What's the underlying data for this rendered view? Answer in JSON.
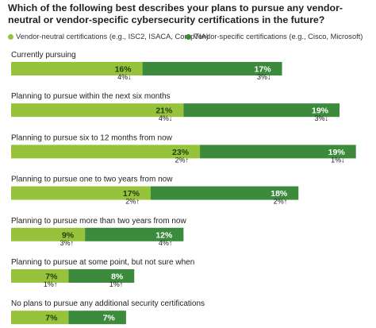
{
  "chart_data": {
    "type": "bar",
    "title": "Which of the following best describes your plans to pursue any vendor-neutral or vendor-specific cybersecurity certifications in the future?",
    "legend": [
      {
        "name": "Vendor-neutral certifications (e.g., ISC2, ISACA, CompTIA)",
        "color": "#97c33c"
      },
      {
        "name": "Vendor-specific certifications (e.g., Cisco, Microsoft)",
        "color": "#3c8a3b"
      }
    ],
    "stacked": true,
    "categories": [
      "Currently pursuing",
      "Planning to pursue within the next six months",
      "Planning to pursue six to 12 months from now",
      "Planning to pursue one to two years from now",
      "Planning to pursue more than two years from now",
      "Planning to pursue at some point, but not sure when",
      "No plans to pursue any additional security certifications"
    ],
    "series": [
      {
        "name": "Vendor-neutral certifications (e.g., ISC2, ISACA, CompTIA)",
        "values": [
          16,
          21,
          23,
          17,
          9,
          7,
          7
        ],
        "labels": [
          "16%",
          "21%",
          "23%",
          "17%",
          "9%",
          "7%",
          "7%"
        ],
        "changes": [
          "4%↓",
          "4%↓",
          "2%↑",
          "2%↑",
          "3%↑",
          "1%↑",
          ""
        ]
      },
      {
        "name": "Vendor-specific certifications (e.g., Cisco, Microsoft)",
        "values": [
          17,
          19,
          19,
          18,
          12,
          8,
          7
        ],
        "labels": [
          "17%",
          "19%",
          "19%",
          "18%",
          "12%",
          "8%",
          "7%"
        ],
        "changes": [
          "3%↓",
          "3%↓",
          "1%↓",
          "2%↑",
          "4%↑",
          "1%↑",
          ""
        ]
      }
    ],
    "colors": {
      "neutral": "#97c33c",
      "specific": "#3c8a3b",
      "neutral_text": "#1e3d10",
      "specific_text": "#ffffff"
    }
  }
}
